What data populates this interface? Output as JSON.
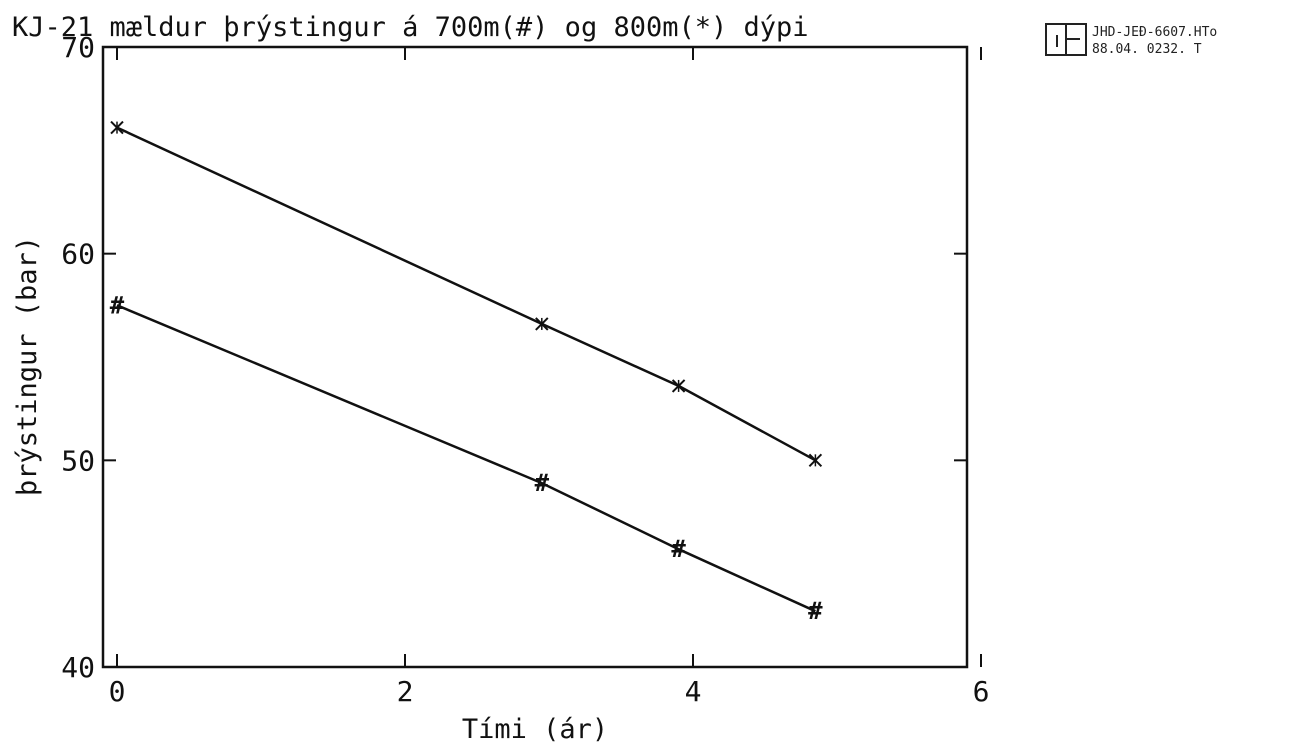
{
  "chart_data": {
    "type": "line",
    "title": "KJ-21 mældur þrýstingur á 700m(#) og 800m(*) dýpi",
    "xlabel": "Tími (ár)",
    "ylabel": "þrýstingur (bar)",
    "xlim": [
      0,
      6
    ],
    "ylim": [
      40,
      70
    ],
    "xticks": [
      "0",
      "2",
      "4",
      "6"
    ],
    "yticks": [
      "40",
      "50",
      "60",
      "70"
    ],
    "grid": false,
    "series": [
      {
        "name": "800m",
        "marker": "*",
        "x": [
          0,
          2.95,
          3.9,
          4.85
        ],
        "y": [
          66.1,
          56.6,
          53.6,
          50.0
        ]
      },
      {
        "name": "700m",
        "marker": "#",
        "x": [
          0,
          2.95,
          3.9,
          4.85
        ],
        "y": [
          57.5,
          48.9,
          45.7,
          42.7
        ]
      }
    ],
    "stamp": {
      "line1": "JHD-JEÐ-6607.HTo",
      "line2": "88.04. 0232. T"
    },
    "colors": {
      "line": "#111111",
      "background": "#ffffff"
    }
  }
}
